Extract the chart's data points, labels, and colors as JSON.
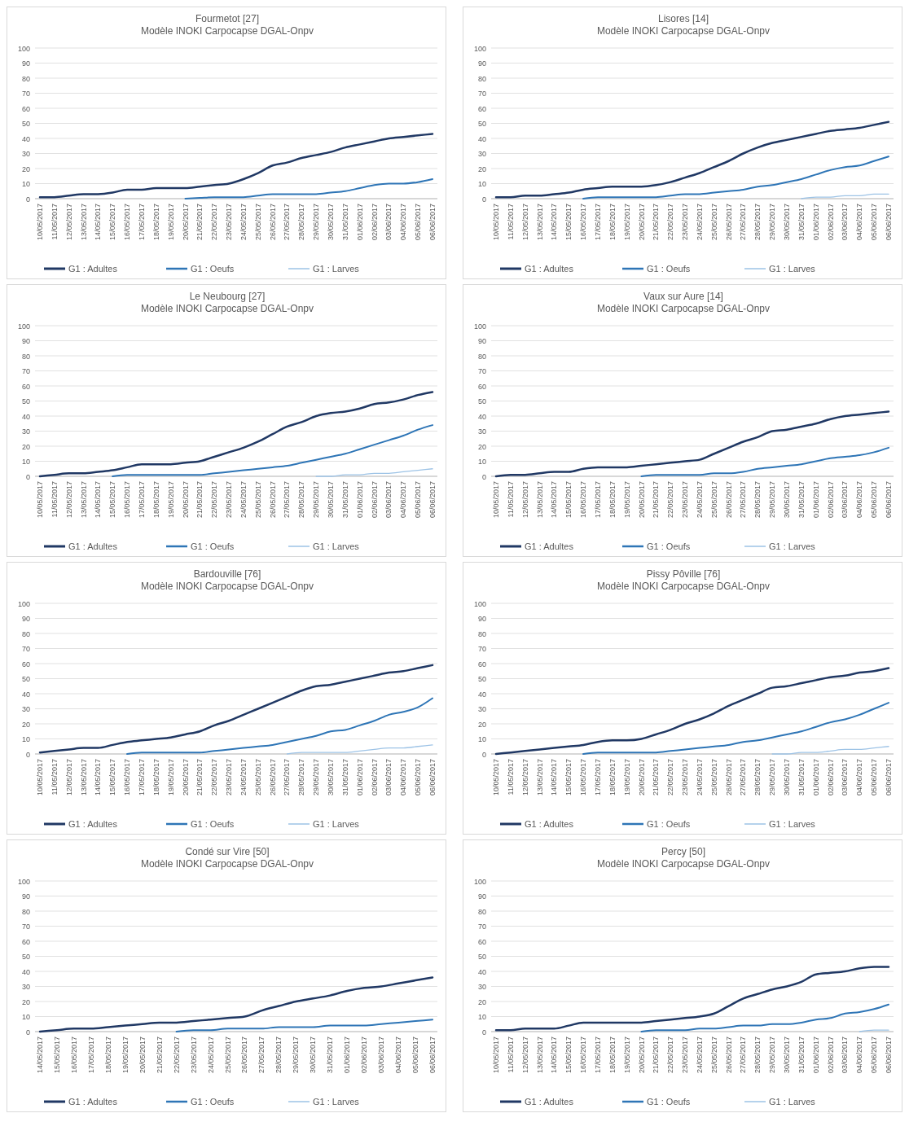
{
  "chart_data": [
    {
      "type": "line",
      "title": "Fourmetot [27]",
      "subtitle": "Modèle INOKI Carpocapse DGAL-Onpv",
      "categories": [
        "10/05/2017",
        "11/05/2017",
        "12/05/2017",
        "13/05/2017",
        "14/05/2017",
        "15/05/2017",
        "16/05/2017",
        "17/05/2017",
        "18/05/2017",
        "19/05/2017",
        "20/05/2017",
        "21/05/2017",
        "22/05/2017",
        "23/05/2017",
        "24/05/2017",
        "25/05/2017",
        "26/05/2017",
        "27/05/2017",
        "28/05/2017",
        "29/05/2017",
        "30/05/2017",
        "31/05/2017",
        "01/06/2017",
        "02/06/2017",
        "03/06/2017",
        "04/06/2017",
        "05/06/2017",
        "06/06/2017"
      ],
      "ylim": [
        0,
        100
      ],
      "yticks": [
        0,
        10,
        20,
        30,
        40,
        50,
        60,
        70,
        80,
        90,
        100
      ],
      "grid": "y",
      "legend": "bottom",
      "series": [
        {
          "name": "G1 : Adultes",
          "color": "#203864",
          "values": [
            1,
            1,
            2,
            3,
            3,
            4,
            6,
            6,
            7,
            7,
            7,
            8,
            9,
            10,
            13,
            17,
            22,
            24,
            27,
            29,
            31,
            34,
            36,
            38,
            40,
            41,
            42,
            43
          ]
        },
        {
          "name": "G1 : Oeufs",
          "color": "#2e75b6",
          "values": [
            null,
            null,
            null,
            null,
            null,
            null,
            null,
            null,
            null,
            null,
            0,
            0.5,
            1,
            1,
            1,
            2,
            3,
            3,
            3,
            3,
            4,
            5,
            7,
            9,
            10,
            10,
            11,
            13
          ]
        },
        {
          "name": "G1 : Larves",
          "color": "#9dc3e6",
          "values": [
            null,
            null,
            null,
            null,
            null,
            null,
            null,
            null,
            null,
            null,
            null,
            null,
            null,
            null,
            null,
            null,
            null,
            null,
            null,
            null,
            null,
            null,
            null,
            null,
            null,
            null,
            null,
            null
          ]
        }
      ]
    },
    {
      "type": "line",
      "title": "Lisores [14]",
      "subtitle": "Modèle INOKI Carpocapse DGAL-Onpv",
      "categories": [
        "10/05/2017",
        "11/05/2017",
        "12/05/2017",
        "13/05/2017",
        "14/05/2017",
        "15/05/2017",
        "16/05/2017",
        "17/05/2017",
        "18/05/2017",
        "19/05/2017",
        "20/05/2017",
        "21/05/2017",
        "22/05/2017",
        "23/05/2017",
        "24/05/2017",
        "25/05/2017",
        "26/05/2017",
        "27/05/2017",
        "28/05/2017",
        "29/05/2017",
        "30/05/2017",
        "31/05/2017",
        "01/06/2017",
        "02/06/2017",
        "03/06/2017",
        "04/06/2017",
        "05/06/2017",
        "06/06/2017"
      ],
      "ylim": [
        0,
        100
      ],
      "yticks": [
        0,
        10,
        20,
        30,
        40,
        50,
        60,
        70,
        80,
        90,
        100
      ],
      "grid": "y",
      "legend": "bottom",
      "series": [
        {
          "name": "G1 : Adultes",
          "color": "#203864",
          "values": [
            1,
            1,
            2,
            2,
            3,
            4,
            6,
            7,
            8,
            8,
            8,
            9,
            11,
            14,
            17,
            21,
            25,
            30,
            34,
            37,
            39,
            41,
            43,
            45,
            46,
            47,
            49,
            51
          ]
        },
        {
          "name": "G1 : Oeufs",
          "color": "#2e75b6",
          "values": [
            null,
            null,
            null,
            null,
            null,
            null,
            0,
            1,
            1,
            1,
            1,
            1,
            2,
            3,
            3,
            4,
            5,
            6,
            8,
            9,
            11,
            13,
            16,
            19,
            21,
            22,
            25,
            28
          ]
        },
        {
          "name": "G1 : Larves",
          "color": "#9dc3e6",
          "values": [
            null,
            null,
            null,
            null,
            null,
            null,
            null,
            null,
            null,
            null,
            null,
            null,
            null,
            null,
            null,
            null,
            null,
            null,
            null,
            null,
            null,
            0,
            1,
            1,
            2,
            2,
            3,
            3
          ]
        }
      ]
    },
    {
      "type": "line",
      "title": "Le Neubourg [27]",
      "subtitle": "Modèle INOKI Carpocapse DGAL-Onpv",
      "categories": [
        "10/05/2017",
        "11/05/2017",
        "12/05/2017",
        "13/05/2017",
        "14/05/2017",
        "15/05/2017",
        "16/05/2017",
        "17/05/2017",
        "18/05/2017",
        "19/05/2017",
        "20/05/2017",
        "21/05/2017",
        "22/05/2017",
        "23/05/2017",
        "24/05/2017",
        "25/05/2017",
        "26/05/2017",
        "27/05/2017",
        "28/05/2017",
        "29/05/2017",
        "30/05/2017",
        "31/05/2017",
        "01/06/2017",
        "02/06/2017",
        "03/06/2017",
        "04/06/2017",
        "05/06/2017",
        "06/06/2017"
      ],
      "ylim": [
        0,
        100
      ],
      "yticks": [
        0,
        10,
        20,
        30,
        40,
        50,
        60,
        70,
        80,
        90,
        100
      ],
      "grid": "y",
      "legend": "bottom",
      "series": [
        {
          "name": "G1 : Adultes",
          "color": "#203864",
          "values": [
            0,
            1,
            2,
            2,
            3,
            4,
            6,
            8,
            8,
            8,
            9,
            10,
            13,
            16,
            19,
            23,
            28,
            33,
            36,
            40,
            42,
            43,
            45,
            48,
            49,
            51,
            54,
            56
          ]
        },
        {
          "name": "G1 : Oeufs",
          "color": "#2e75b6",
          "values": [
            null,
            null,
            null,
            null,
            null,
            0,
            1,
            1,
            1,
            1,
            1,
            1,
            2,
            3,
            4,
            5,
            6,
            7,
            9,
            11,
            13,
            15,
            18,
            21,
            24,
            27,
            31,
            34
          ]
        },
        {
          "name": "G1 : Larves",
          "color": "#9dc3e6",
          "values": [
            null,
            null,
            null,
            null,
            null,
            null,
            null,
            null,
            null,
            null,
            null,
            null,
            null,
            null,
            null,
            null,
            null,
            null,
            null,
            0,
            0,
            1,
            1,
            2,
            2,
            3,
            4,
            5
          ]
        }
      ]
    },
    {
      "type": "line",
      "title": "Vaux sur Aure [14]",
      "subtitle": "Modèle INOKI Carpocapse DGAL-Onpv",
      "categories": [
        "10/05/2017",
        "11/05/2017",
        "12/05/2017",
        "13/05/2017",
        "14/05/2017",
        "15/05/2017",
        "16/05/2017",
        "17/05/2017",
        "18/05/2017",
        "19/05/2017",
        "20/05/2017",
        "21/05/2017",
        "22/05/2017",
        "23/05/2017",
        "24/05/2017",
        "25/05/2017",
        "26/05/2017",
        "27/05/2017",
        "28/05/2017",
        "29/05/2017",
        "30/05/2017",
        "31/05/2017",
        "01/06/2017",
        "02/06/2017",
        "03/06/2017",
        "04/06/2017",
        "05/06/2017",
        "06/06/2017"
      ],
      "ylim": [
        0,
        100
      ],
      "yticks": [
        0,
        10,
        20,
        30,
        40,
        50,
        60,
        70,
        80,
        90,
        100
      ],
      "grid": "y",
      "legend": "bottom",
      "series": [
        {
          "name": "G1 : Adultes",
          "color": "#203864",
          "values": [
            0,
            1,
            1,
            2,
            3,
            3,
            5,
            6,
            6,
            6,
            7,
            8,
            9,
            10,
            11,
            15,
            19,
            23,
            26,
            30,
            31,
            33,
            35,
            38,
            40,
            41,
            42,
            43
          ]
        },
        {
          "name": "G1 : Oeufs",
          "color": "#2e75b6",
          "values": [
            null,
            null,
            null,
            null,
            null,
            null,
            null,
            null,
            null,
            null,
            0,
            1,
            1,
            1,
            1,
            2,
            2,
            3,
            5,
            6,
            7,
            8,
            10,
            12,
            13,
            14,
            16,
            19
          ]
        },
        {
          "name": "G1 : Larves",
          "color": "#9dc3e6",
          "values": [
            null,
            null,
            null,
            null,
            null,
            null,
            null,
            null,
            null,
            null,
            null,
            null,
            null,
            null,
            null,
            null,
            null,
            null,
            null,
            null,
            null,
            null,
            null,
            null,
            null,
            null,
            null,
            null
          ]
        }
      ]
    },
    {
      "type": "line",
      "title": "Bardouville [76]",
      "subtitle": "Modèle INOKI Carpocapse DGAL-Onpv",
      "categories": [
        "10/05/2017",
        "11/05/2017",
        "12/05/2017",
        "13/05/2017",
        "14/05/2017",
        "15/05/2017",
        "16/05/2017",
        "17/05/2017",
        "18/05/2017",
        "19/05/2017",
        "20/05/2017",
        "21/05/2017",
        "22/05/2017",
        "23/05/2017",
        "24/05/2017",
        "25/05/2017",
        "26/05/2017",
        "27/05/2017",
        "28/05/2017",
        "29/05/2017",
        "30/05/2017",
        "31/05/2017",
        "01/06/2017",
        "02/06/2017",
        "03/06/2017",
        "04/06/2017",
        "05/06/2017",
        "06/06/2017"
      ],
      "ylim": [
        0,
        100
      ],
      "yticks": [
        0,
        10,
        20,
        30,
        40,
        50,
        60,
        70,
        80,
        90,
        100
      ],
      "grid": "y",
      "legend": "bottom",
      "series": [
        {
          "name": "G1 : Adultes",
          "color": "#203864",
          "values": [
            1,
            2,
            3,
            4,
            4,
            6,
            8,
            9,
            10,
            11,
            13,
            15,
            19,
            22,
            26,
            30,
            34,
            38,
            42,
            45,
            46,
            48,
            50,
            52,
            54,
            55,
            57,
            59
          ]
        },
        {
          "name": "G1 : Oeufs",
          "color": "#2e75b6",
          "values": [
            null,
            null,
            null,
            null,
            null,
            null,
            0,
            1,
            1,
            1,
            1,
            1,
            2,
            3,
            4,
            5,
            6,
            8,
            10,
            12,
            15,
            16,
            19,
            22,
            26,
            28,
            31,
            37
          ]
        },
        {
          "name": "G1 : Larves",
          "color": "#9dc3e6",
          "values": [
            null,
            null,
            null,
            null,
            null,
            null,
            null,
            null,
            null,
            null,
            null,
            null,
            null,
            null,
            null,
            null,
            null,
            0,
            1,
            1,
            1,
            1,
            2,
            3,
            4,
            4,
            5,
            6
          ]
        }
      ]
    },
    {
      "type": "line",
      "title": "Pissy Pôville [76]",
      "subtitle": "Modèle INOKI Carpocapse DGAL-Onpv",
      "categories": [
        "10/05/2017",
        "11/05/2017",
        "12/05/2017",
        "13/05/2017",
        "14/05/2017",
        "15/05/2017",
        "16/05/2017",
        "17/05/2017",
        "18/05/2017",
        "19/05/2017",
        "20/05/2017",
        "21/05/2017",
        "22/05/2017",
        "23/05/2017",
        "24/05/2017",
        "25/05/2017",
        "26/05/2017",
        "27/05/2017",
        "28/05/2017",
        "29/05/2017",
        "30/05/2017",
        "31/05/2017",
        "01/06/2017",
        "02/06/2017",
        "03/06/2017",
        "04/06/2017",
        "05/06/2017",
        "06/06/2017"
      ],
      "ylim": [
        0,
        100
      ],
      "yticks": [
        0,
        10,
        20,
        30,
        40,
        50,
        60,
        70,
        80,
        90,
        100
      ],
      "grid": "y",
      "legend": "bottom",
      "series": [
        {
          "name": "G1 : Adultes",
          "color": "#203864",
          "values": [
            0,
            1,
            2,
            3,
            4,
            5,
            6,
            8,
            9,
            9,
            10,
            13,
            16,
            20,
            23,
            27,
            32,
            36,
            40,
            44,
            45,
            47,
            49,
            51,
            52,
            54,
            55,
            57
          ]
        },
        {
          "name": "G1 : Oeufs",
          "color": "#2e75b6",
          "values": [
            null,
            null,
            null,
            null,
            null,
            null,
            0,
            1,
            1,
            1,
            1,
            1,
            2,
            3,
            4,
            5,
            6,
            8,
            9,
            11,
            13,
            15,
            18,
            21,
            23,
            26,
            30,
            34
          ]
        },
        {
          "name": "G1 : Larves",
          "color": "#9dc3e6",
          "values": [
            null,
            null,
            null,
            null,
            null,
            null,
            null,
            null,
            null,
            null,
            null,
            null,
            null,
            null,
            null,
            null,
            null,
            null,
            null,
            0,
            0,
            1,
            1,
            2,
            3,
            3,
            4,
            5
          ]
        }
      ]
    },
    {
      "type": "line",
      "title": "Condé sur Vire [50]",
      "subtitle": "Modèle INOKI Carpocapse DGAL-Onpv",
      "categories": [
        "14/05/2017",
        "15/05/2017",
        "16/05/2017",
        "17/05/2017",
        "18/05/2017",
        "19/05/2017",
        "20/05/2017",
        "21/05/2017",
        "22/05/2017",
        "23/05/2017",
        "24/05/2017",
        "25/05/2017",
        "26/05/2017",
        "27/05/2017",
        "28/05/2017",
        "29/05/2017",
        "30/05/2017",
        "31/05/2017",
        "01/06/2017",
        "02/06/2017",
        "03/06/2017",
        "04/06/2017",
        "05/06/2017",
        "06/06/2017"
      ],
      "ylim": [
        0,
        100
      ],
      "yticks": [
        0,
        10,
        20,
        30,
        40,
        50,
        60,
        70,
        80,
        90,
        100
      ],
      "grid": "y",
      "legend": "bottom",
      "series": [
        {
          "name": "G1 : Adultes",
          "color": "#203864",
          "values": [
            0,
            1,
            2,
            2,
            3,
            4,
            5,
            6,
            6,
            7,
            8,
            9,
            10,
            14,
            17,
            20,
            22,
            24,
            27,
            29,
            30,
            32,
            34,
            36
          ]
        },
        {
          "name": "G1 : Oeufs",
          "color": "#2e75b6",
          "values": [
            null,
            null,
            null,
            null,
            null,
            null,
            null,
            null,
            0,
            1,
            1,
            2,
            2,
            2,
            3,
            3,
            3,
            4,
            4,
            4,
            5,
            6,
            7,
            8
          ]
        },
        {
          "name": "G1 : Larves",
          "color": "#9dc3e6",
          "values": [
            null,
            null,
            null,
            null,
            null,
            null,
            null,
            null,
            null,
            null,
            null,
            null,
            null,
            null,
            null,
            null,
            null,
            null,
            null,
            null,
            null,
            null,
            null,
            null
          ]
        }
      ]
    },
    {
      "type": "line",
      "title": "Percy [50]",
      "subtitle": "Modèle INOKI Carpocapse DGAL-Onpv",
      "categories": [
        "10/05/2017",
        "11/05/2017",
        "12/05/2017",
        "13/05/2017",
        "14/05/2017",
        "15/05/2017",
        "16/05/2017",
        "17/05/2017",
        "18/05/2017",
        "19/05/2017",
        "20/05/2017",
        "21/05/2017",
        "22/05/2017",
        "23/05/2017",
        "24/05/2017",
        "25/05/2017",
        "26/05/2017",
        "27/05/2017",
        "28/05/2017",
        "29/05/2017",
        "30/05/2017",
        "31/05/2017",
        "01/06/2017",
        "02/06/2017",
        "03/06/2017",
        "04/06/2017",
        "05/06/2017",
        "06/06/2017"
      ],
      "ylim": [
        0,
        100
      ],
      "yticks": [
        0,
        10,
        20,
        30,
        40,
        50,
        60,
        70,
        80,
        90,
        100
      ],
      "grid": "y",
      "legend": "bottom",
      "series": [
        {
          "name": "G1 : Adultes",
          "color": "#203864",
          "values": [
            1,
            1,
            2,
            2,
            2,
            4,
            6,
            6,
            6,
            6,
            6,
            7,
            8,
            9,
            10,
            12,
            17,
            22,
            25,
            28,
            30,
            33,
            38,
            39,
            40,
            42,
            43,
            43
          ]
        },
        {
          "name": "G1 : Oeufs",
          "color": "#2e75b6",
          "values": [
            null,
            null,
            null,
            null,
            null,
            null,
            null,
            null,
            null,
            null,
            0,
            1,
            1,
            1,
            2,
            2,
            3,
            4,
            4,
            5,
            5,
            6,
            8,
            9,
            12,
            13,
            15,
            18
          ]
        },
        {
          "name": "G1 : Larves",
          "color": "#9dc3e6",
          "values": [
            null,
            null,
            null,
            null,
            null,
            null,
            null,
            null,
            null,
            null,
            null,
            null,
            null,
            null,
            null,
            null,
            null,
            null,
            null,
            null,
            null,
            null,
            null,
            null,
            null,
            0,
            1,
            1
          ]
        }
      ]
    }
  ]
}
